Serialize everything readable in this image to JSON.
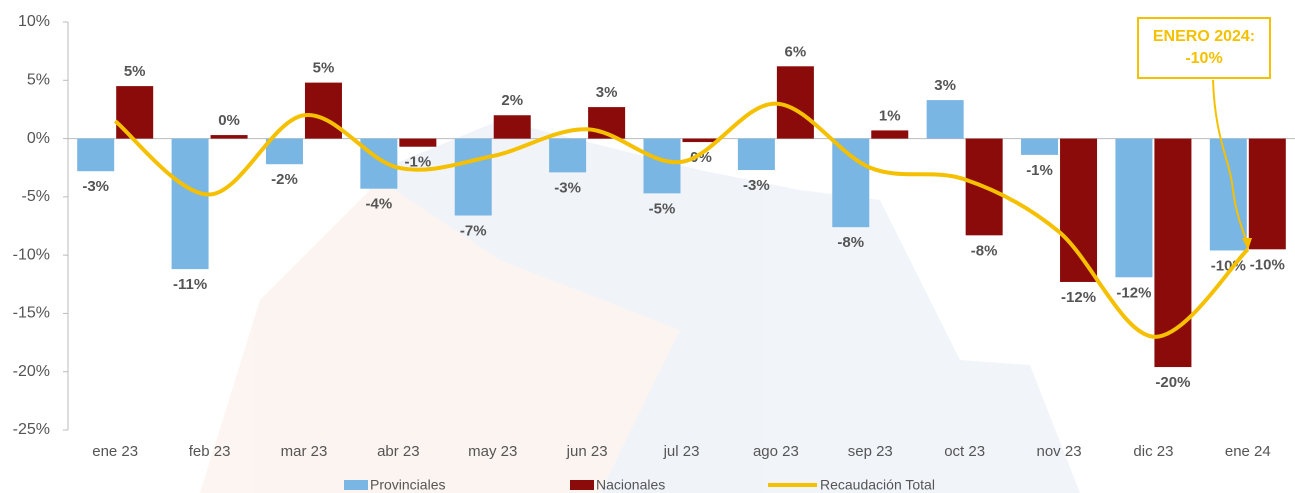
{
  "chart_data": {
    "type": "bar-line",
    "categories": [
      "ene 23",
      "feb 23",
      "mar 23",
      "abr 23",
      "may 23",
      "jun 23",
      "jul 23",
      "ago 23",
      "sep 23",
      "oct 23",
      "nov 23",
      "dic 23",
      "ene 24"
    ],
    "series": [
      {
        "name": "Provinciales",
        "color": "#7ab6e4",
        "type": "bar",
        "values": [
          -2.8,
          -11.2,
          -2.2,
          -4.3,
          -6.6,
          -2.9,
          -4.7,
          -2.7,
          -7.6,
          3.3,
          -1.4,
          -11.9,
          -9.6
        ],
        "value_labels": [
          "-3%",
          "-11%",
          "-2%",
          "-4%",
          "-7%",
          "-3%",
          "-5%",
          "-3%",
          "-8%",
          "3%",
          "-1%",
          "-12%",
          "-10%"
        ]
      },
      {
        "name": "Nacionales",
        "color": "#8b0a0a",
        "type": "bar",
        "values": [
          4.5,
          0.3,
          4.8,
          -0.7,
          2.0,
          2.7,
          -0.3,
          6.2,
          0.7,
          -8.3,
          -12.3,
          -19.6,
          -9.5
        ],
        "value_labels": [
          "5%",
          "0%",
          "5%",
          "-1%",
          "2%",
          "3%",
          "0%",
          "6%",
          "1%",
          "-8%",
          "-12%",
          "-20%",
          "-10%"
        ]
      },
      {
        "name": "Recaudación Total",
        "color": "#f5c000",
        "type": "line",
        "values": [
          1.5,
          -4.8,
          2.0,
          -2.5,
          -1.5,
          0.8,
          -2.0,
          3.0,
          -2.5,
          -3.5,
          -8.0,
          -17.0,
          -9.5
        ]
      }
    ],
    "ylim": [
      -25,
      10
    ],
    "yticks": [
      {
        "value": -25,
        "label": "-25%"
      },
      {
        "value": -20,
        "label": "-20%"
      },
      {
        "value": -15,
        "label": "-15%"
      },
      {
        "value": -10,
        "label": "-10%"
      },
      {
        "value": -5,
        "label": "-5%"
      },
      {
        "value": 0,
        "label": "0%"
      },
      {
        "value": 5,
        "label": "5%"
      },
      {
        "value": 10,
        "label": "10%"
      }
    ],
    "annotation": [
      "ENERO 2024:",
      "-10%"
    ],
    "legend": "bottom"
  }
}
